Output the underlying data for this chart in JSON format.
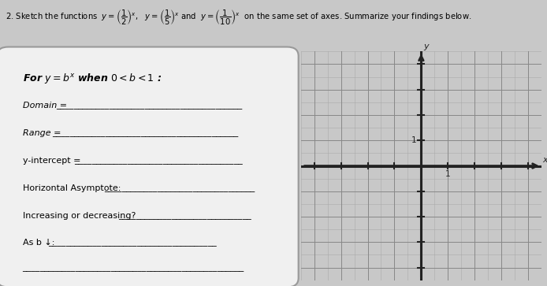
{
  "title": "2. Sketch the functions  $y=\\left(\\dfrac{1}{2}\\right)^x$,   $y=\\left(\\dfrac{1}{5}\\right)^x$ and  $y=\\left(\\dfrac{1}{10}\\right)^x$  on the same set of axes. Summarize your findings below.",
  "background_color": "#c8c8c8",
  "box_facecolor": "#f0f0f0",
  "box_edgecolor": "#999999",
  "grid_facecolor": "#f0f0f0",
  "text_lines": [
    [
      "For ",
      "italic",
      8.5
    ],
    [
      "$y = b^x$",
      "italic",
      8.5
    ],
    [
      " when $0 < b < 1$ :",
      "italic",
      8.5
    ]
  ],
  "field_lines": [
    "Domain = ",
    "Range = ",
    "y-intercept = ",
    "Horizontal Asymptote: ",
    "Increasing or decreasing? ",
    "As b ↓:"
  ],
  "grid_color": "#aaaaaa",
  "axis_color": "#222222",
  "xlim": [
    -4,
    4
  ],
  "ylim": [
    -4,
    4
  ],
  "n_minor": 2,
  "xlabel": "x",
  "ylabel": "y"
}
